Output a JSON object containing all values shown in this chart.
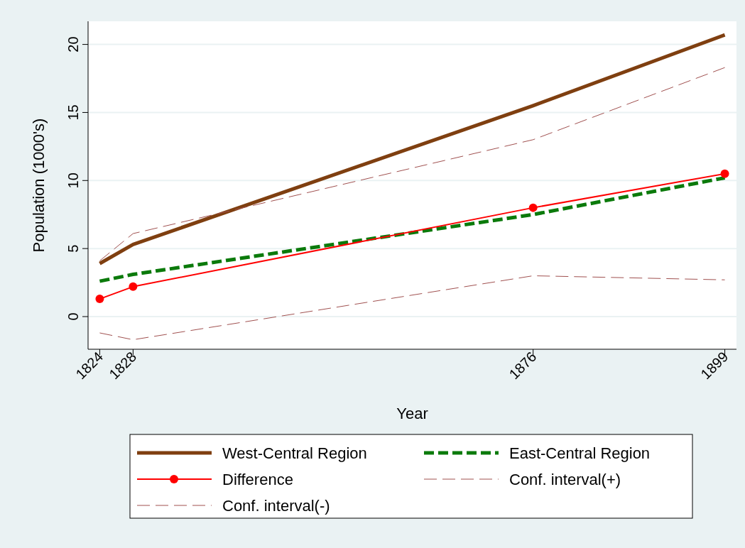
{
  "chart_data": {
    "type": "line",
    "xlabel": "Year",
    "ylabel": "Population (1000's)",
    "x": [
      1824,
      1828,
      1876,
      1899
    ],
    "xlim": [
      1822.6,
      1900.4
    ],
    "ylim": [
      -2.4,
      21.7
    ],
    "xticks": [
      1824,
      1828,
      1876,
      1899
    ],
    "yticks": [
      0,
      5,
      10,
      15,
      20
    ],
    "grid": "y",
    "legend": "bottom",
    "series": [
      {
        "name": "West-Central Region",
        "color": "#7f3f10",
        "values": [
          3.9,
          5.3,
          15.5,
          20.7
        ],
        "line_style": "solid",
        "marker": "none"
      },
      {
        "name": "East-Central Region",
        "color": "#0b7a0b",
        "values": [
          2.6,
          3.1,
          7.5,
          10.2
        ],
        "line_style": "dashed",
        "marker": "none"
      },
      {
        "name": "Difference",
        "color": "#ff0000",
        "values": [
          1.3,
          2.2,
          8.0,
          10.5
        ],
        "line_style": "solid",
        "marker": "circle"
      },
      {
        "name": "Conf. interval(+)",
        "color": "#a0504f",
        "values": [
          4.1,
          6.1,
          13.0,
          18.3
        ],
        "line_style": "dashed",
        "marker": "none"
      },
      {
        "name": "Conf. interval(-)",
        "color": "#a0504f",
        "values": [
          -1.2,
          -1.7,
          3.0,
          2.7
        ],
        "line_style": "dashed",
        "marker": "none"
      }
    ]
  }
}
